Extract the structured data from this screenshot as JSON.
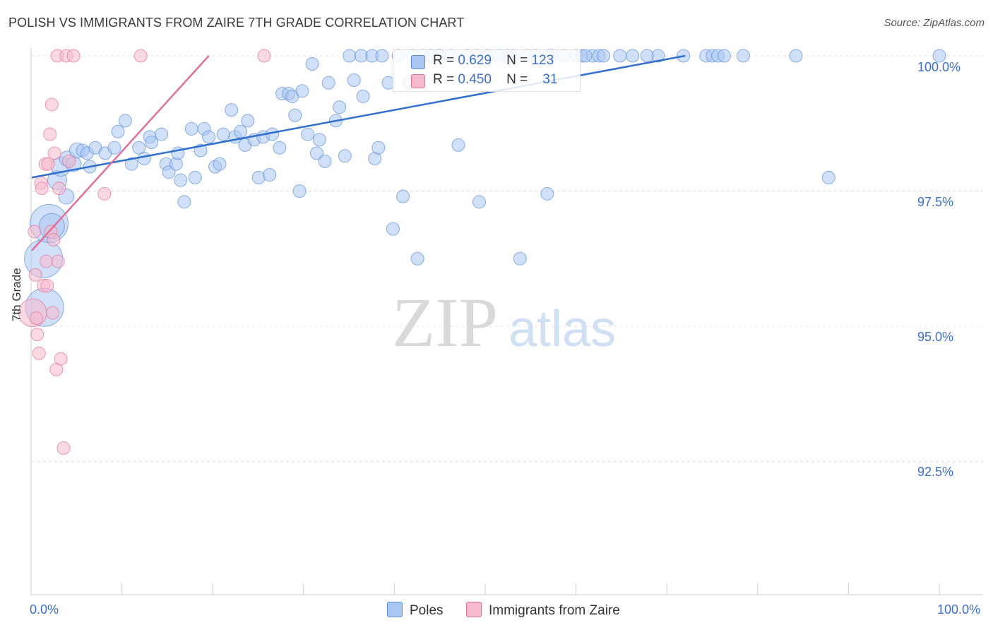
{
  "title": "POLISH VS IMMIGRANTS FROM ZAIRE 7TH GRADE CORRELATION CHART",
  "source": "Source: ZipAtlas.com",
  "watermark": {
    "zip": "ZIP",
    "atlas": "atlas"
  },
  "legend_stats": [
    {
      "r_label": "R =",
      "r_value": "0.629",
      "n_label": "N =",
      "n_value": "123",
      "color": "#a9c6f2"
    },
    {
      "r_label": "R =",
      "r_value": "0.450",
      "n_label": "N =",
      "n_value": "31",
      "color": "#f7b9cc"
    }
  ],
  "bottom_legend": [
    {
      "label": "Poles",
      "color": "#a9c6f2"
    },
    {
      "label": "Immigrants from Zaire",
      "color": "#f7b9cc"
    }
  ],
  "chart_data": {
    "type": "scatter",
    "title": "POLISH VS IMMIGRANTS FROM ZAIRE 7TH GRADE CORRELATION CHART",
    "xlabel": "",
    "ylabel": "7th Grade",
    "x_tick_labels": [
      "0.0%",
      "100.0%"
    ],
    "y_tick_labels": [
      "100.0%",
      "97.5%",
      "95.0%",
      "92.5%"
    ],
    "y_ticks": [
      100.0,
      97.5,
      95.0,
      92.5
    ],
    "xlim": [
      0,
      100
    ],
    "ylim": [
      90.0,
      100.2
    ],
    "grid": true,
    "series": [
      {
        "name": "Poles",
        "color": "#5b8fdb",
        "fill": "#a9c6f2",
        "r": 0.629,
        "n": 123,
        "trend": {
          "x0": 0,
          "y0": 97.75,
          "x1": 72,
          "y1": 100.0
        },
        "points": [
          [
            1.4,
            95.35,
            3
          ],
          [
            1.3,
            96.25,
            3
          ],
          [
            1.9,
            96.9,
            3
          ],
          [
            2.2,
            96.85,
            2
          ],
          [
            2.8,
            97.7,
            1.5
          ],
          [
            3.2,
            97.95,
            1.5
          ],
          [
            3.9,
            98.1,
            1.2
          ],
          [
            3.8,
            97.4,
            1.2
          ],
          [
            4.6,
            98.0,
            1.2
          ],
          [
            5.0,
            98.25,
            1.2
          ],
          [
            5.6,
            98.25,
            1
          ],
          [
            6.1,
            98.2,
            1
          ],
          [
            6.4,
            97.95,
            1
          ],
          [
            7.0,
            98.3,
            1
          ],
          [
            8.1,
            98.2,
            1
          ],
          [
            9.5,
            98.6,
            1
          ],
          [
            9.1,
            98.3,
            1
          ],
          [
            10.3,
            98.8,
            1
          ],
          [
            11.0,
            98.0,
            1
          ],
          [
            11.8,
            98.3,
            1
          ],
          [
            12.4,
            98.1,
            1
          ],
          [
            13.0,
            98.5,
            1
          ],
          [
            13.2,
            98.4,
            1
          ],
          [
            14.3,
            98.55,
            1
          ],
          [
            14.8,
            98.0,
            1
          ],
          [
            15.1,
            97.85,
            1
          ],
          [
            15.9,
            98.0,
            1
          ],
          [
            16.1,
            98.2,
            1
          ],
          [
            16.4,
            97.7,
            1
          ],
          [
            16.8,
            97.3,
            1
          ],
          [
            17.6,
            98.65,
            1
          ],
          [
            18.0,
            97.75,
            1
          ],
          [
            18.6,
            98.25,
            1
          ],
          [
            19.0,
            98.65,
            1
          ],
          [
            19.5,
            98.5,
            1
          ],
          [
            20.2,
            97.95,
            1
          ],
          [
            20.7,
            98.0,
            1
          ],
          [
            21.1,
            98.55,
            1
          ],
          [
            22.0,
            99.0,
            1
          ],
          [
            22.4,
            98.5,
            1
          ],
          [
            23.0,
            98.6,
            1
          ],
          [
            23.5,
            98.35,
            1
          ],
          [
            23.8,
            98.8,
            1
          ],
          [
            24.5,
            98.45,
            1
          ],
          [
            25.0,
            97.75,
            1
          ],
          [
            25.5,
            98.5,
            1
          ],
          [
            26.2,
            97.8,
            1
          ],
          [
            26.5,
            98.55,
            1
          ],
          [
            27.3,
            98.3,
            1
          ],
          [
            27.6,
            99.3,
            1
          ],
          [
            28.3,
            99.3,
            1
          ],
          [
            28.7,
            99.25,
            1
          ],
          [
            29.0,
            98.9,
            1
          ],
          [
            29.5,
            97.5,
            1
          ],
          [
            29.8,
            99.35,
            1
          ],
          [
            30.4,
            98.55,
            1
          ],
          [
            30.9,
            99.85,
            1
          ],
          [
            31.4,
            98.2,
            1
          ],
          [
            31.7,
            98.45,
            1
          ],
          [
            32.3,
            98.05,
            1
          ],
          [
            32.7,
            99.5,
            1
          ],
          [
            33.5,
            98.8,
            1
          ],
          [
            33.9,
            99.05,
            1
          ],
          [
            34.5,
            98.15,
            1
          ],
          [
            35.0,
            100.0,
            1
          ],
          [
            35.5,
            99.55,
            1
          ],
          [
            36.3,
            100.0,
            1
          ],
          [
            36.5,
            99.25,
            1
          ],
          [
            37.5,
            100.0,
            1
          ],
          [
            37.8,
            98.1,
            1
          ],
          [
            38.2,
            98.3,
            1
          ],
          [
            38.6,
            100.0,
            1
          ],
          [
            39.3,
            99.5,
            1
          ],
          [
            39.8,
            96.8,
            1
          ],
          [
            40.4,
            100.0,
            1
          ],
          [
            40.9,
            97.4,
            1
          ],
          [
            41.6,
            99.5,
            1
          ],
          [
            42.0,
            100.0,
            1
          ],
          [
            42.5,
            96.25,
            1
          ],
          [
            43.1,
            100.0,
            1
          ],
          [
            44.0,
            100.0,
            1
          ],
          [
            45.0,
            100.0,
            1
          ],
          [
            46.2,
            100.0,
            1
          ],
          [
            47.0,
            98.35,
            1
          ],
          [
            48.0,
            100.0,
            1
          ],
          [
            49.0,
            100.0,
            1
          ],
          [
            49.3,
            97.3,
            1
          ],
          [
            50.2,
            100.0,
            1
          ],
          [
            51.5,
            100.0,
            1
          ],
          [
            53.0,
            100.0,
            1
          ],
          [
            53.8,
            96.25,
            1
          ],
          [
            54.6,
            100.0,
            1
          ],
          [
            55.5,
            100.0,
            1
          ],
          [
            56.8,
            97.45,
            1
          ],
          [
            57.3,
            100.0,
            1
          ],
          [
            58.6,
            100.0,
            1
          ],
          [
            60.0,
            100.0,
            1
          ],
          [
            60.6,
            100.0,
            1
          ],
          [
            61.8,
            100.0,
            1
          ],
          [
            62.5,
            100.0,
            1
          ],
          [
            63.0,
            100.0,
            1
          ],
          [
            64.8,
            100.0,
            1
          ],
          [
            66.2,
            100.0,
            1
          ],
          [
            69.0,
            100.0,
            1
          ],
          [
            71.8,
            100.0,
            1
          ],
          [
            74.3,
            100.0,
            1
          ],
          [
            75.0,
            100.0,
            1
          ],
          [
            75.6,
            100.0,
            1
          ],
          [
            76.3,
            100.0,
            1
          ],
          [
            78.4,
            100.0,
            1
          ],
          [
            84.2,
            100.0,
            1
          ],
          [
            87.8,
            97.75,
            1
          ],
          [
            100.0,
            100.0,
            1
          ],
          [
            57.0,
            100.0,
            1
          ],
          [
            44.8,
            100.0,
            1
          ],
          [
            67.8,
            100.0,
            1
          ],
          [
            52.4,
            100.0,
            1
          ],
          [
            61.0,
            100.0,
            1
          ]
        ]
      },
      {
        "name": "Immigrants from Zaire",
        "color": "#e36f98",
        "fill": "#f7b9cc",
        "r": 0.45,
        "n": 31,
        "trend": {
          "x0": 0,
          "y0": 96.4,
          "x1": 19.5,
          "y1": 100.0
        },
        "points": [
          [
            0.1,
            95.25,
            2.2
          ],
          [
            0.3,
            96.75,
            1
          ],
          [
            0.4,
            95.95,
            1
          ],
          [
            0.5,
            95.15,
            1
          ],
          [
            0.6,
            94.85,
            1
          ],
          [
            0.8,
            94.5,
            1
          ],
          [
            1.0,
            97.65,
            1
          ],
          [
            1.1,
            97.55,
            1
          ],
          [
            1.3,
            95.75,
            1
          ],
          [
            1.5,
            98.0,
            1
          ],
          [
            1.6,
            96.2,
            1
          ],
          [
            1.7,
            95.75,
            1
          ],
          [
            1.8,
            98.0,
            1
          ],
          [
            2.0,
            98.55,
            1
          ],
          [
            2.1,
            96.75,
            1
          ],
          [
            2.2,
            99.1,
            1
          ],
          [
            2.3,
            95.25,
            1
          ],
          [
            2.4,
            96.6,
            1
          ],
          [
            2.5,
            98.2,
            1
          ],
          [
            2.7,
            94.2,
            1
          ],
          [
            2.8,
            100.0,
            1
          ],
          [
            2.9,
            96.2,
            1
          ],
          [
            3.0,
            97.55,
            1
          ],
          [
            3.2,
            94.4,
            1
          ],
          [
            3.5,
            92.75,
            1
          ],
          [
            3.8,
            100.0,
            1
          ],
          [
            4.1,
            98.05,
            1
          ],
          [
            4.6,
            100.0,
            1
          ],
          [
            8.0,
            97.45,
            1
          ],
          [
            12.0,
            100.0,
            1
          ],
          [
            25.6,
            100.0,
            1
          ]
        ]
      }
    ]
  }
}
